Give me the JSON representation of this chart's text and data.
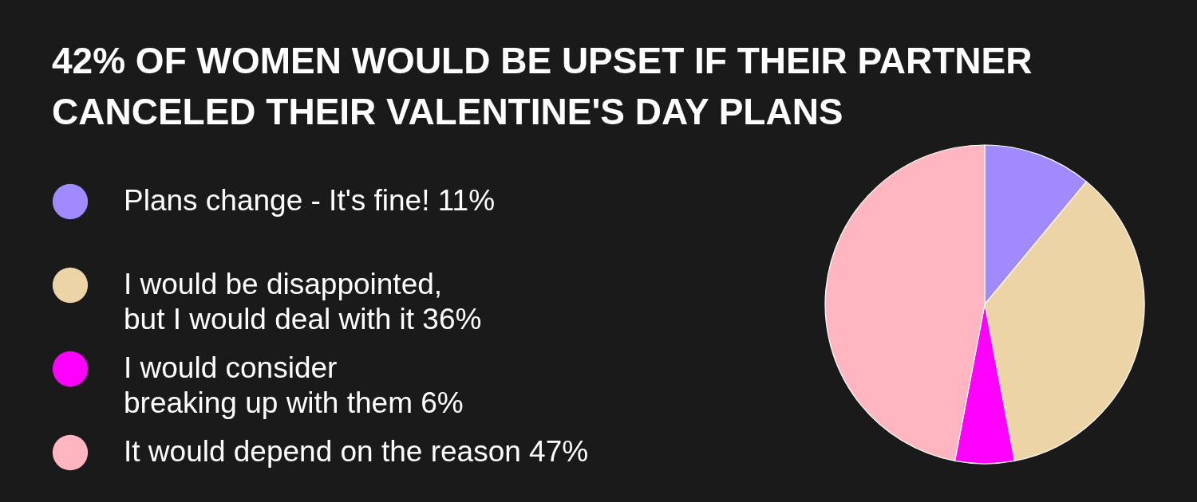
{
  "chart_data": {
    "type": "pie",
    "title": "42% OF WOMEN WOULD BE UPSET IF THEIR PARTNER CANCELED THEIR VALENTINE'S DAY PLANS",
    "categories": [
      "Plans change - It's fine!",
      "I would be disappointed,\nbut I would deal with it",
      "I would consider\nbreaking up with them",
      "It would depend on the reason"
    ],
    "values": [
      11,
      36,
      6,
      47
    ],
    "value_labels": [
      "11%",
      "36%",
      "6%",
      "47%"
    ],
    "colors": [
      "#a08afd",
      "#ecd4a7",
      "#ff00ff",
      "#ffb6c1"
    ],
    "legend": "left"
  }
}
